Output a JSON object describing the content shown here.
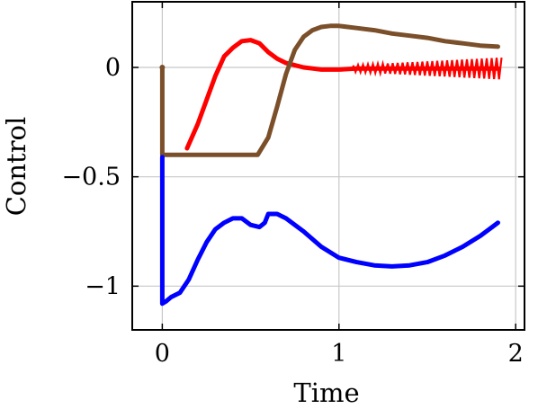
{
  "chart_data": {
    "type": "line",
    "title": "",
    "xlabel": "Time",
    "ylabel": "Control",
    "xlim": [
      -0.17,
      2.05
    ],
    "ylim": [
      -1.2,
      0.3
    ],
    "xticks": [
      {
        "value": 0,
        "label": "0"
      },
      {
        "value": 1,
        "label": "1"
      },
      {
        "value": 2,
        "label": "2"
      }
    ],
    "yticks": [
      {
        "value": 0,
        "label": "0"
      },
      {
        "value": -0.5,
        "label": "−0.5"
      },
      {
        "value": -1,
        "label": "−1"
      }
    ],
    "grid": true,
    "legend": "none",
    "series": [
      {
        "color": "#ff0000",
        "x": [
          0.14,
          0.2,
          0.25,
          0.3,
          0.35,
          0.4,
          0.45,
          0.5,
          0.55,
          0.6,
          0.65,
          0.7,
          0.75,
          0.8,
          0.85,
          0.9,
          0.95,
          1.0,
          1.1,
          1.2,
          1.3,
          1.4,
          1.5,
          1.6,
          1.7,
          1.8,
          1.9
        ],
        "y": [
          -0.37,
          -0.26,
          -0.15,
          -0.04,
          0.05,
          0.09,
          0.12,
          0.125,
          0.11,
          0.07,
          0.04,
          0.02,
          0.01,
          0.0,
          -0.005,
          -0.01,
          -0.01,
          -0.01,
          -0.005,
          -0.005,
          -0.005,
          -0.005,
          -0.005,
          -0.005,
          -0.005,
          -0.005,
          -0.005
        ]
      },
      {
        "color": "#7a4f2a",
        "x": [
          0.0,
          0.0,
          0.0,
          0.1,
          0.2,
          0.3,
          0.4,
          0.5,
          0.54,
          0.6,
          0.65,
          0.7,
          0.75,
          0.8,
          0.85,
          0.9,
          0.95,
          1.0,
          1.1,
          1.2,
          1.3,
          1.4,
          1.5,
          1.6,
          1.7,
          1.8,
          1.9
        ],
        "y": [
          0.0,
          -0.4,
          -0.4,
          -0.4,
          -0.4,
          -0.4,
          -0.4,
          -0.4,
          -0.4,
          -0.32,
          -0.18,
          -0.03,
          0.08,
          0.14,
          0.17,
          0.185,
          0.19,
          0.19,
          0.18,
          0.17,
          0.155,
          0.145,
          0.135,
          0.12,
          0.11,
          0.1,
          0.095
        ]
      },
      {
        "color": "#0000ff",
        "x": [
          0.0,
          0.0,
          0.02,
          0.05,
          0.1,
          0.15,
          0.2,
          0.25,
          0.3,
          0.35,
          0.4,
          0.45,
          0.5,
          0.55,
          0.58,
          0.6,
          0.65,
          0.7,
          0.8,
          0.9,
          1.0,
          1.1,
          1.2,
          1.3,
          1.4,
          1.5,
          1.6,
          1.7,
          1.8,
          1.9
        ],
        "y": [
          -0.41,
          -1.08,
          -1.07,
          -1.05,
          -1.03,
          -0.97,
          -0.88,
          -0.8,
          -0.74,
          -0.71,
          -0.69,
          -0.69,
          -0.72,
          -0.73,
          -0.71,
          -0.67,
          -0.67,
          -0.69,
          -0.75,
          -0.82,
          -0.87,
          -0.89,
          -0.905,
          -0.91,
          -0.905,
          -0.89,
          -0.86,
          -0.82,
          -0.77,
          -0.71
        ]
      }
    ],
    "annotations": [
      {
        "type": "oscillation-band",
        "color": "#ff0000",
        "x_start": 1.08,
        "x_end": 1.92,
        "center": -0.005,
        "amplitude_start": 0.015,
        "amplitude_end": 0.05
      }
    ]
  }
}
